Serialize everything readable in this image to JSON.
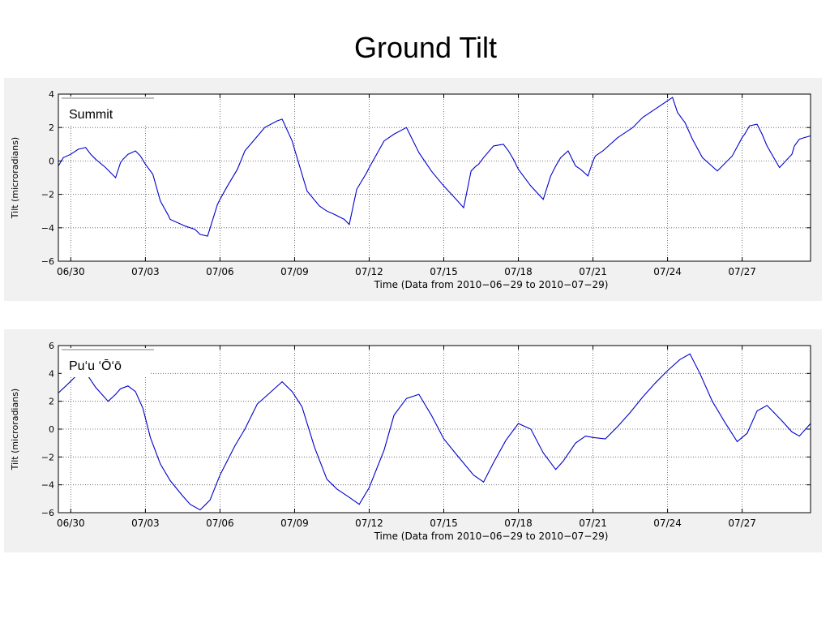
{
  "page": {
    "title": "Ground Tilt"
  },
  "chart_data": [
    {
      "type": "line",
      "title": "Summit",
      "xlabel": "Time (Data from 2010−06−29 to 2010−07−29)",
      "ylabel": "Tilt (microradians)",
      "x_unit": "days since 06/30 00:00",
      "xlim": [
        -0.5,
        29.75
      ],
      "ylim": [
        -6,
        4
      ],
      "yticks": [
        -6,
        -4,
        -2,
        0,
        2,
        4
      ],
      "ytick_labels": [
        "−6",
        "−4",
        "−2",
        "0",
        "2",
        "4"
      ],
      "xticks": [
        0,
        3,
        6,
        9,
        12,
        15,
        18,
        21,
        24,
        27
      ],
      "xtick_labels": [
        "06/30",
        "07/03",
        "07/06",
        "07/09",
        "07/12",
        "07/15",
        "07/18",
        "07/21",
        "07/24",
        "07/27"
      ],
      "grid": true,
      "legend_position": "top-left",
      "series": [
        {
          "name": "Summit",
          "color": "#0000cc",
          "x": [
            -0.5,
            -0.3,
            0.0,
            0.3,
            0.6,
            0.8,
            1.0,
            1.4,
            1.8,
            2.0,
            2.1,
            2.3,
            2.6,
            2.8,
            3.0,
            3.3,
            3.6,
            3.9,
            4.0,
            4.3,
            4.6,
            5.0,
            5.2,
            5.5,
            5.9,
            6.0,
            6.3,
            6.7,
            7.0,
            7.4,
            7.8,
            8.3,
            8.5,
            8.9,
            9.0,
            9.5,
            10.0,
            10.3,
            10.6,
            11.0,
            11.2,
            11.5,
            11.9,
            12.0,
            12.6,
            13.0,
            13.5,
            13.7,
            14.0,
            14.5,
            15.0,
            15.5,
            15.8,
            16.1,
            16.3,
            16.4,
            16.6,
            17.0,
            17.4,
            17.6,
            17.8,
            18.0,
            18.5,
            19.0,
            19.3,
            19.5,
            19.7,
            20.0,
            20.3,
            20.5,
            20.8,
            21.0,
            21.1,
            21.4,
            22.0,
            22.6,
            23.0,
            23.4,
            24.0,
            24.2,
            24.4,
            24.6,
            24.7,
            25.0,
            25.4,
            26.0,
            26.6,
            27.0,
            27.1,
            27.3,
            27.6,
            27.8,
            28.0,
            28.5,
            29.0,
            29.1,
            29.3,
            29.5,
            29.75
          ],
          "y": [
            -0.3,
            0.2,
            0.4,
            0.7,
            0.8,
            0.4,
            0.1,
            -0.4,
            -1.0,
            -0.1,
            0.1,
            0.4,
            0.6,
            0.3,
            -0.2,
            -0.8,
            -2.4,
            -3.2,
            -3.5,
            -3.7,
            -3.9,
            -4.1,
            -4.4,
            -4.5,
            -2.6,
            -2.3,
            -1.5,
            -0.5,
            0.6,
            1.3,
            2.0,
            2.4,
            2.5,
            1.2,
            0.7,
            -1.8,
            -2.7,
            -3.0,
            -3.2,
            -3.5,
            -3.8,
            -1.7,
            -0.7,
            -0.4,
            1.2,
            1.6,
            2.0,
            1.4,
            0.5,
            -0.6,
            -1.5,
            -2.3,
            -2.8,
            -0.6,
            -0.3,
            -0.2,
            0.2,
            0.9,
            1.0,
            0.6,
            0.1,
            -0.5,
            -1.5,
            -2.3,
            -0.9,
            -0.3,
            0.2,
            0.6,
            -0.3,
            -0.5,
            -0.9,
            0.0,
            0.3,
            0.6,
            1.4,
            2.0,
            2.6,
            3.0,
            3.6,
            3.8,
            2.9,
            2.5,
            2.3,
            1.3,
            0.2,
            -0.6,
            0.3,
            1.4,
            1.6,
            2.1,
            2.2,
            1.6,
            0.9,
            -0.4,
            0.4,
            0.9,
            1.3,
            1.4,
            1.5
          ]
        }
      ]
    },
    {
      "type": "line",
      "title": "Pu‘u ‘Ō‘ō",
      "xlabel": "Time (Data from 2010−06−29 to 2010−07−29)",
      "ylabel": "Tilt (microradians)",
      "x_unit": "days since 06/30 00:00",
      "xlim": [
        -0.5,
        29.75
      ],
      "ylim": [
        -6,
        6
      ],
      "yticks": [
        -6,
        -4,
        -2,
        0,
        2,
        4,
        6
      ],
      "ytick_labels": [
        "−6",
        "−4",
        "−2",
        "0",
        "2",
        "4",
        "6"
      ],
      "xticks": [
        0,
        3,
        6,
        9,
        12,
        15,
        18,
        21,
        24,
        27
      ],
      "xtick_labels": [
        "06/30",
        "07/03",
        "07/06",
        "07/09",
        "07/12",
        "07/15",
        "07/18",
        "07/21",
        "07/24",
        "07/27"
      ],
      "grid": true,
      "legend_position": "top-left",
      "series": [
        {
          "name": "Pu‘u ‘Ō‘ō",
          "color": "#0000cc",
          "x": [
            -0.5,
            -0.2,
            0.2,
            0.5,
            0.7,
            1.0,
            1.5,
            1.8,
            2.0,
            2.3,
            2.6,
            2.9,
            3.2,
            3.6,
            4.0,
            4.5,
            4.8,
            5.2,
            5.6,
            6.0,
            6.6,
            7.0,
            7.5,
            8.0,
            8.5,
            8.9,
            9.3,
            9.8,
            10.3,
            10.7,
            11.2,
            11.6,
            12.0,
            12.6,
            13.0,
            13.5,
            14.0,
            14.5,
            15.0,
            15.5,
            16.2,
            16.6,
            17.0,
            17.5,
            18.0,
            18.5,
            19.0,
            19.5,
            19.8,
            20.3,
            20.7,
            21.0,
            21.5,
            22.0,
            22.5,
            23.0,
            23.5,
            24.0,
            24.5,
            24.9,
            25.3,
            25.8,
            26.3,
            26.8,
            27.2,
            27.6,
            28.0,
            28.6,
            29.0,
            29.3,
            29.75
          ],
          "y": [
            2.6,
            3.1,
            3.8,
            4.0,
            3.8,
            3.0,
            2.0,
            2.5,
            2.9,
            3.1,
            2.7,
            1.5,
            -0.6,
            -2.5,
            -3.7,
            -4.8,
            -5.4,
            -5.8,
            -5.1,
            -3.3,
            -1.2,
            0.0,
            1.8,
            2.6,
            3.4,
            2.7,
            1.6,
            -1.3,
            -3.6,
            -4.3,
            -4.9,
            -5.4,
            -4.2,
            -1.5,
            1.0,
            2.2,
            2.5,
            1.0,
            -0.7,
            -1.8,
            -3.3,
            -3.8,
            -2.4,
            -0.8,
            0.4,
            0.0,
            -1.7,
            -2.9,
            -2.3,
            -1.0,
            -0.5,
            -0.6,
            -0.7,
            0.2,
            1.2,
            2.3,
            3.3,
            4.2,
            5.0,
            5.4,
            4.0,
            2.0,
            0.5,
            -0.9,
            -0.3,
            1.3,
            1.7,
            0.6,
            -0.2,
            -0.5,
            0.4
          ]
        }
      ]
    }
  ]
}
